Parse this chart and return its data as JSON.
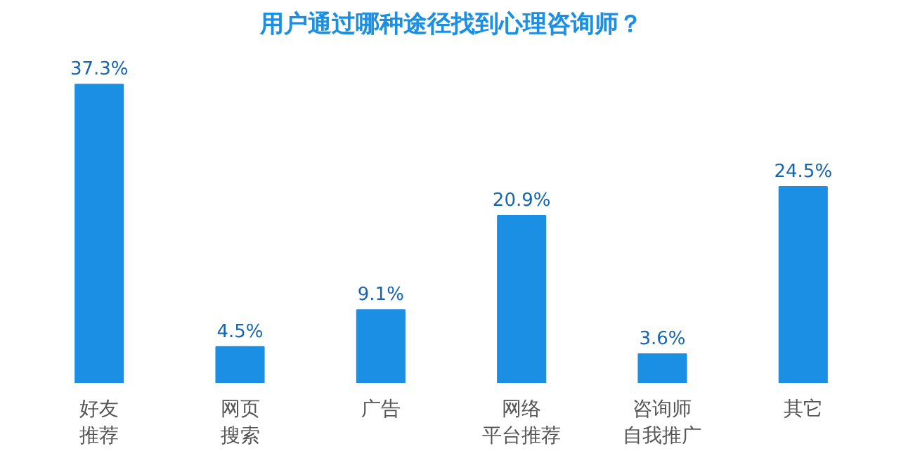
{
  "chart_data": {
    "type": "bar",
    "title": "用户通过哪种途径找到心理咨询师？",
    "categories": [
      "好友推荐",
      "网页搜索",
      "广告",
      "网络平台推荐",
      "咨询师自我推广",
      "其它"
    ],
    "values": [
      37.3,
      4.5,
      9.1,
      20.9,
      3.6,
      24.5
    ],
    "value_labels": [
      "37.3%",
      "4.5%",
      "9.1%",
      "20.9%",
      "3.6%",
      "24.5%"
    ],
    "color": "#1a8fe3"
  }
}
